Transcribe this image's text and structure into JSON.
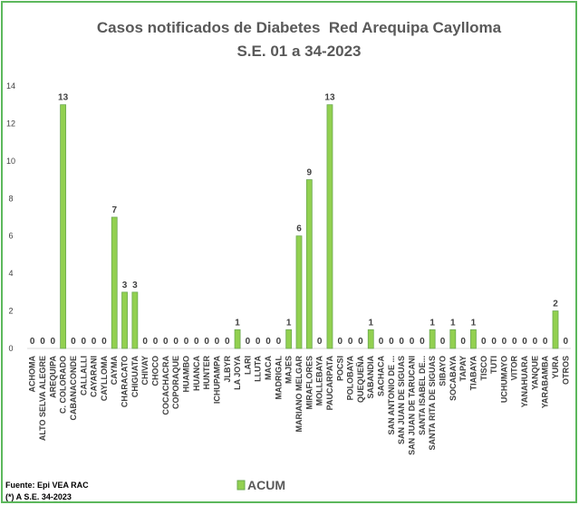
{
  "chart_data": {
    "type": "bar",
    "title": "Casos notificados de Diabetes  Red Arequipa Caylloma",
    "subtitle": "S.E. 01 a 34-2023",
    "categories": [
      "ACHOMA",
      "ALTO SELVA ALEGRE",
      "AREQUIPA",
      "C. COLORADO",
      "CABANACONDE",
      "CALLALLI",
      "CAYARANI",
      "CAYLLOMA",
      "CAYMA",
      "CHARACATO",
      "CHIGUATA",
      "CHIVAY",
      "CHOCO",
      "COCACHACRA",
      "COPORAQUE",
      "HUAMBO",
      "HUANCA",
      "HUNTER",
      "ICHUPAMPA",
      "JLBYR",
      "LA JOYA",
      "LARI",
      "LLUTA",
      "MACA",
      "MADRIGAL",
      "MAJES",
      "MARIANO MELGAR",
      "MIRAFLORES",
      "MOLLEBAYA",
      "PAUCARPATA",
      "POCSI",
      "POLOBAYA",
      "QUEQUEÑA",
      "SABANDIA",
      "SACHACA",
      "SAN ANTONIO DE ...",
      "SAN JUAN DE SIGUAS",
      "SAN JUAN DE TARUCANI",
      "SANTA ISABEL DE...",
      "SANTA RITA DE SIGUAS",
      "SIBAYO",
      "SOCABAYA",
      "TAPAY",
      "TIABAYA",
      "TISCO",
      "TUTI",
      "UCHUMAYO",
      "VITOR",
      "YANAHUARA",
      "YANQUE",
      "YARABAMBA",
      "YURA",
      "OTROS"
    ],
    "series": [
      {
        "name": "ACUM",
        "color": "#92d050",
        "values": [
          0,
          0,
          0,
          13,
          0,
          0,
          0,
          0,
          7,
          3,
          3,
          0,
          0,
          0,
          0,
          0,
          0,
          0,
          0,
          0,
          1,
          0,
          0,
          0,
          0,
          1,
          6,
          9,
          0,
          13,
          0,
          0,
          0,
          1,
          0,
          0,
          0,
          0,
          0,
          1,
          0,
          1,
          0,
          1,
          0,
          0,
          0,
          0,
          0,
          0,
          0,
          2,
          0
        ]
      }
    ],
    "ylim": [
      0,
      14
    ],
    "yticks": [
      0,
      2,
      4,
      6,
      8,
      10,
      12,
      14
    ],
    "grid": false,
    "legend": "bottom",
    "notes": [
      "Fuente: Epi VEA RAC",
      "(*) A S.E. 34-2023"
    ]
  }
}
